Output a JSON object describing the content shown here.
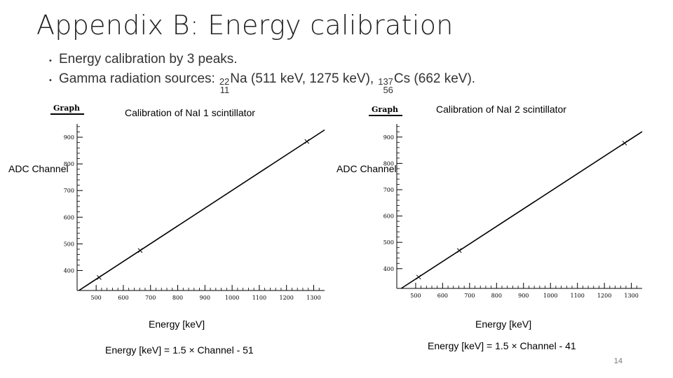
{
  "slide": {
    "title": "Appendix B: Energy calibration",
    "bullet1": "Energy calibration by 3 peaks.",
    "bullet2_prefix": "Gamma radiation sources: ",
    "na_mass": "22",
    "na_z": "11",
    "na_rest": "Na (511 keV, 1275 keV), ",
    "cs_mass": "137",
    "cs_z": "56",
    "cs_rest": "Cs (662 keV).",
    "page_number": "14"
  },
  "chart_data": [
    {
      "type": "line",
      "graph_tag": "Graph",
      "title": "Calibration of NaI 1 scintillator",
      "xlabel": "Energy [keV]",
      "ylabel": "ADC Channel",
      "formula": "Energy [keV] = 1.5 × Channel - 51",
      "xlim": [
        430,
        1340
      ],
      "ylim": [
        325,
        950
      ],
      "xticks": [
        500,
        600,
        700,
        800,
        900,
        1000,
        1100,
        1200,
        1300
      ],
      "yticks": [
        400,
        500,
        600,
        700,
        800,
        900
      ],
      "points": [
        {
          "x": 511,
          "y": 374
        },
        {
          "x": 662,
          "y": 475
        },
        {
          "x": 1275,
          "y": 884
        }
      ],
      "fit": {
        "slope": 0.6667,
        "intercept": 34
      }
    },
    {
      "type": "line",
      "graph_tag": "Graph",
      "title": "Calibration of NaI 2 scintillator",
      "xlabel": "Energy [keV]",
      "ylabel": "ADC Channel",
      "formula": "Energy [keV] = 1.5 × Channel - 41",
      "xlim": [
        430,
        1340
      ],
      "ylim": [
        325,
        950
      ],
      "xticks": [
        500,
        600,
        700,
        800,
        900,
        1000,
        1100,
        1200,
        1300
      ],
      "yticks": [
        400,
        500,
        600,
        700,
        800,
        900
      ],
      "points": [
        {
          "x": 511,
          "y": 368
        },
        {
          "x": 662,
          "y": 469
        },
        {
          "x": 1275,
          "y": 877
        }
      ],
      "fit": {
        "slope": 0.6667,
        "intercept": 27.3
      }
    }
  ]
}
